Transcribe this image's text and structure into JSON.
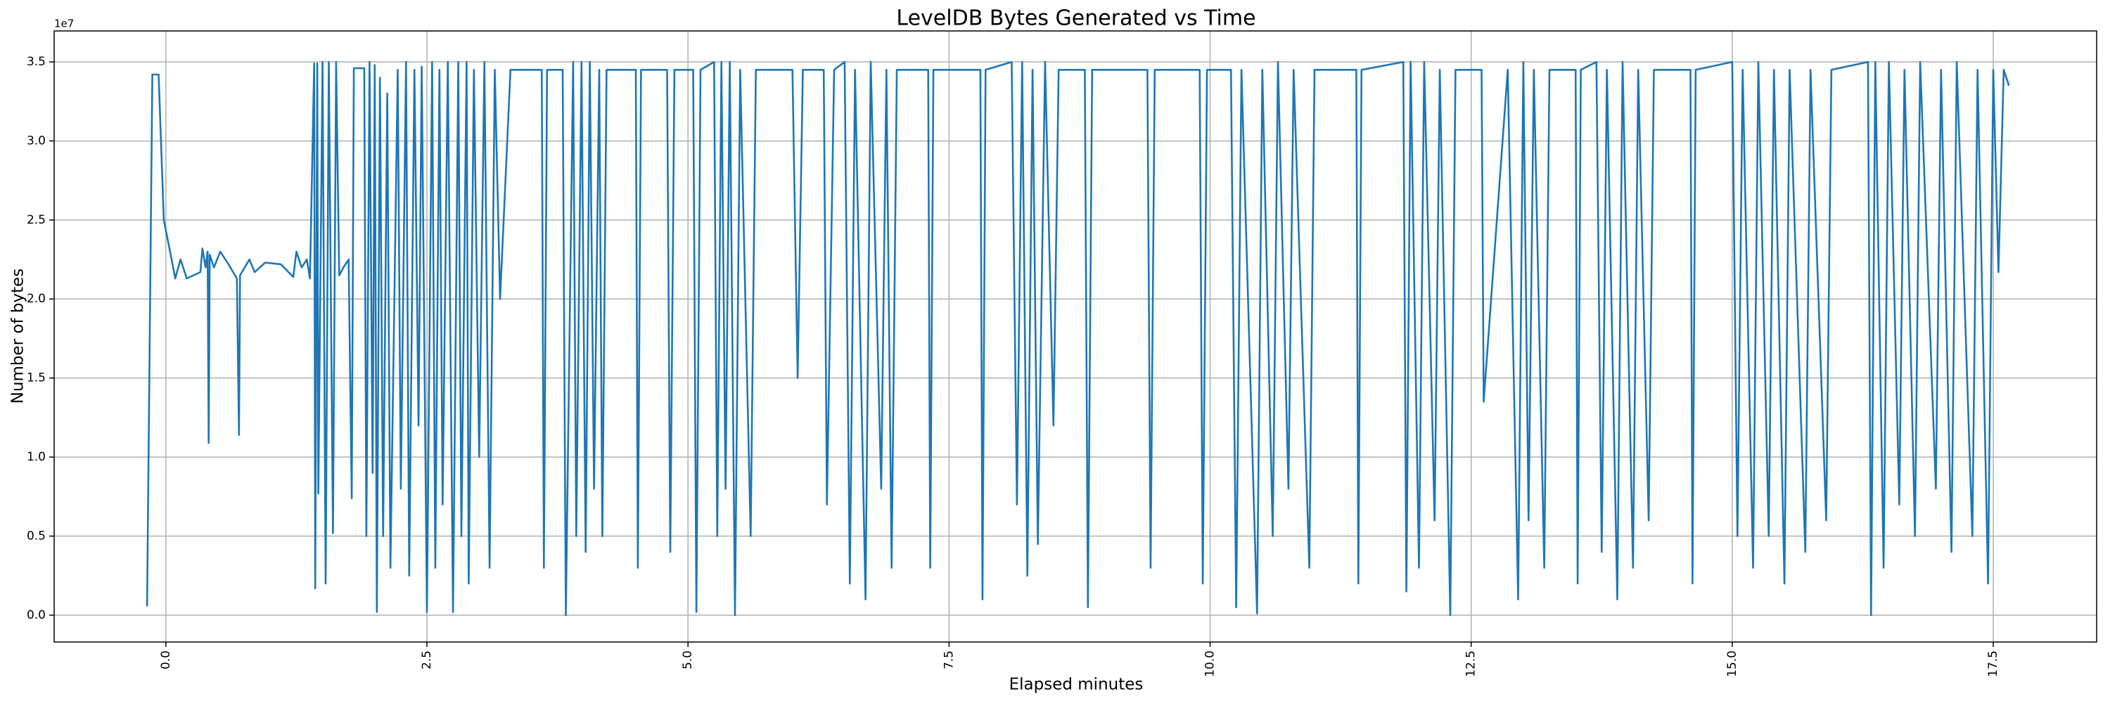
{
  "chart_data": {
    "type": "line",
    "title": "LevelDB Bytes Generated vs Time",
    "xlabel": "Elapsed minutes",
    "ylabel": "Number of bytes",
    "y_offset_label": "1e7",
    "color": "#1f77b4",
    "grid": true,
    "xlim": [
      -1.07,
      18.49
    ],
    "ylim": [
      -1700000.0,
      36960000.0
    ],
    "xticks": [
      {
        "value": 0,
        "label": "0.0"
      },
      2.5,
      {
        "value": 5,
        "label": "5.0"
      },
      7.5,
      {
        "value": 10,
        "label": "10.0"
      },
      12.5,
      {
        "value": 15,
        "label": "15.0"
      },
      17.5
    ],
    "yticks": [
      {
        "value": 0,
        "label": "0.0"
      },
      {
        "value": 5000000.0,
        "label": "0.5"
      },
      {
        "value": 10000000.0,
        "label": "1.0"
      },
      {
        "value": 15000000.0,
        "label": "1.5"
      },
      {
        "value": 20000000.0,
        "label": "2.0"
      },
      {
        "value": 25000000.0,
        "label": "2.5"
      },
      {
        "value": 30000000.0,
        "label": "3.0"
      },
      {
        "value": 35000000.0,
        "label": "3.5"
      }
    ],
    "x": [
      -0.18,
      -0.13,
      -0.07,
      -0.02,
      0.04,
      0.09,
      0.14,
      0.2,
      0.33,
      0.35,
      0.38,
      0.4,
      0.41,
      0.42,
      0.46,
      0.52,
      0.6,
      0.68,
      0.7,
      0.71,
      0.8,
      0.85,
      0.95,
      1.1,
      1.22,
      1.25,
      1.3,
      1.35,
      1.38,
      1.42,
      1.43,
      1.45,
      1.46,
      1.5,
      1.53,
      1.56,
      1.6,
      1.63,
      1.66,
      1.7,
      1.75,
      1.78,
      1.8,
      1.9,
      1.92,
      1.95,
      1.98,
      2.0,
      2.02,
      2.05,
      2.08,
      2.12,
      2.15,
      2.22,
      2.25,
      2.3,
      2.33,
      2.38,
      2.42,
      2.45,
      2.5,
      2.55,
      2.58,
      2.62,
      2.65,
      2.7,
      2.75,
      2.8,
      2.83,
      2.88,
      2.9,
      2.95,
      3.0,
      3.05,
      3.1,
      3.15,
      3.2,
      3.3,
      3.6,
      3.62,
      3.65,
      3.8,
      3.83,
      3.9,
      3.93,
      3.98,
      4.02,
      4.06,
      4.1,
      4.15,
      4.18,
      4.22,
      4.5,
      4.52,
      4.55,
      4.8,
      4.83,
      4.87,
      5.05,
      5.08,
      5.12,
      5.25,
      5.28,
      5.32,
      5.36,
      5.4,
      5.45,
      5.5,
      5.6,
      5.65,
      6.0,
      6.05,
      6.1,
      6.3,
      6.33,
      6.4,
      6.5,
      6.55,
      6.6,
      6.7,
      6.75,
      6.85,
      6.9,
      6.95,
      7.0,
      7.3,
      7.32,
      7.35,
      7.8,
      7.82,
      7.85,
      8.1,
      8.15,
      8.2,
      8.25,
      8.3,
      8.35,
      8.42,
      8.5,
      8.55,
      8.8,
      8.83,
      8.87,
      9.4,
      9.43,
      9.47,
      9.9,
      9.93,
      9.97,
      10.2,
      10.25,
      10.3,
      10.45,
      10.5,
      10.6,
      10.65,
      10.75,
      10.8,
      10.95,
      11.0,
      11.4,
      11.42,
      11.45,
      11.85,
      11.88,
      11.92,
      12.0,
      12.05,
      12.15,
      12.2,
      12.3,
      12.35,
      12.6,
      12.62,
      12.85,
      12.95,
      13.0,
      13.05,
      13.1,
      13.2,
      13.25,
      13.5,
      13.52,
      13.55,
      13.7,
      13.75,
      13.8,
      13.9,
      13.95,
      14.05,
      14.1,
      14.2,
      14.25,
      14.6,
      14.62,
      14.65,
      15.0,
      15.05,
      15.1,
      15.2,
      15.25,
      15.35,
      15.4,
      15.5,
      15.55,
      15.7,
      15.75,
      15.9,
      15.95,
      16.3,
      16.33,
      16.37,
      16.45,
      16.5,
      16.6,
      16.65,
      16.75,
      16.8,
      16.95,
      17.0,
      17.1,
      17.15,
      17.3,
      17.35,
      17.45,
      17.5,
      17.55,
      17.6,
      17.65
    ],
    "values": [
      550000.0,
      34200000.0,
      34200000.0,
      25000000.0,
      23000000.0,
      21300000.0,
      22500000.0,
      21300000.0,
      21700000.0,
      23200000.0,
      22000000.0,
      23000000.0,
      10900000.0,
      22800000.0,
      22000000.0,
      23000000.0,
      22200000.0,
      21300000.0,
      11400000.0,
      21500000.0,
      22500000.0,
      21700000.0,
      22300000.0,
      22200000.0,
      21400000.0,
      23000000.0,
      22000000.0,
      22500000.0,
      21300000.0,
      34900000.0,
      1700000.0,
      34900000.0,
      7700000.0,
      35000000.0,
      2000000.0,
      35000000.0,
      5200000.0,
      35000000.0,
      21500000.0,
      22000000.0,
      22500000.0,
      7400000.0,
      34600000.0,
      34600000.0,
      5000000.0,
      35000000.0,
      9000000.0,
      34800000.0,
      200000.0,
      34000000.0,
      5000000.0,
      33000000.0,
      3000000.0,
      34500000.0,
      8000000.0,
      35000000.0,
      2500000.0,
      34500000.0,
      12000000.0,
      34700000.0,
      200000.0,
      35000000.0,
      3000000.0,
      34500000.0,
      7000000.0,
      35000000.0,
      200000.0,
      35000000.0,
      5000000.0,
      35000000.0,
      2000000.0,
      34500000.0,
      10000000.0,
      35000000.0,
      3000000.0,
      34500000.0,
      20000000.0,
      34500000.0,
      34500000.0,
      3000000.0,
      34500000.0,
      34500000.0,
      0.0,
      35000000.0,
      5000000.0,
      35000000.0,
      4000000.0,
      35000000.0,
      8000000.0,
      34500000.0,
      5000000.0,
      34500000.0,
      34500000.0,
      3000000.0,
      34500000.0,
      34500000.0,
      4000000.0,
      34500000.0,
      34500000.0,
      200000.0,
      34500000.0,
      35000000.0,
      5000000.0,
      35000000.0,
      8000000.0,
      35000000.0,
      0.0,
      34500000.0,
      5000000.0,
      34500000.0,
      34500000.0,
      15000000.0,
      34500000.0,
      34500000.0,
      7000000.0,
      34500000.0,
      35000000.0,
      2000000.0,
      34500000.0,
      1000000.0,
      35000000.0,
      8000000.0,
      34500000.0,
      3000000.0,
      34500000.0,
      34500000.0,
      3000000.0,
      34500000.0,
      34500000.0,
      1000000.0,
      34500000.0,
      35000000.0,
      7000000.0,
      35000000.0,
      2500000.0,
      34500000.0,
      4500000.0,
      35000000.0,
      12000000.0,
      34500000.0,
      34500000.0,
      500000.0,
      34500000.0,
      34500000.0,
      3000000.0,
      34500000.0,
      34500000.0,
      2000000.0,
      34500000.0,
      34500000.0,
      500000.0,
      34500000.0,
      100000.0,
      34500000.0,
      5000000.0,
      35000000.0,
      8000000.0,
      34500000.0,
      3000000.0,
      34500000.0,
      34500000.0,
      2000000.0,
      34500000.0,
      35000000.0,
      1500000.0,
      35000000.0,
      3000000.0,
      35000000.0,
      6000000.0,
      34500000.0,
      0.0,
      34500000.0,
      34500000.0,
      13500000.0,
      34500000.0,
      1000000.0,
      35000000.0,
      6000000.0,
      34500000.0,
      3000000.0,
      34500000.0,
      34500000.0,
      2000000.0,
      34500000.0,
      35000000.0,
      4000000.0,
      34500000.0,
      1000000.0,
      35000000.0,
      3000000.0,
      34500000.0,
      6000000.0,
      34500000.0,
      34500000.0,
      2000000.0,
      34500000.0,
      35000000.0,
      5000000.0,
      34500000.0,
      3000000.0,
      35000000.0,
      5000000.0,
      34500000.0,
      2000000.0,
      34500000.0,
      4000000.0,
      34500000.0,
      6000000.0,
      34500000.0,
      35000000.0,
      0.0,
      35000000.0,
      3000000.0,
      35000000.0,
      7000000.0,
      34500000.0,
      5000000.0,
      35000000.0,
      8000000.0,
      34500000.0,
      4000000.0,
      35000000.0,
      5000000.0,
      34500000.0,
      2000000.0,
      34500000.0,
      21700000.0,
      34500000.0,
      33500000.0
    ]
  }
}
